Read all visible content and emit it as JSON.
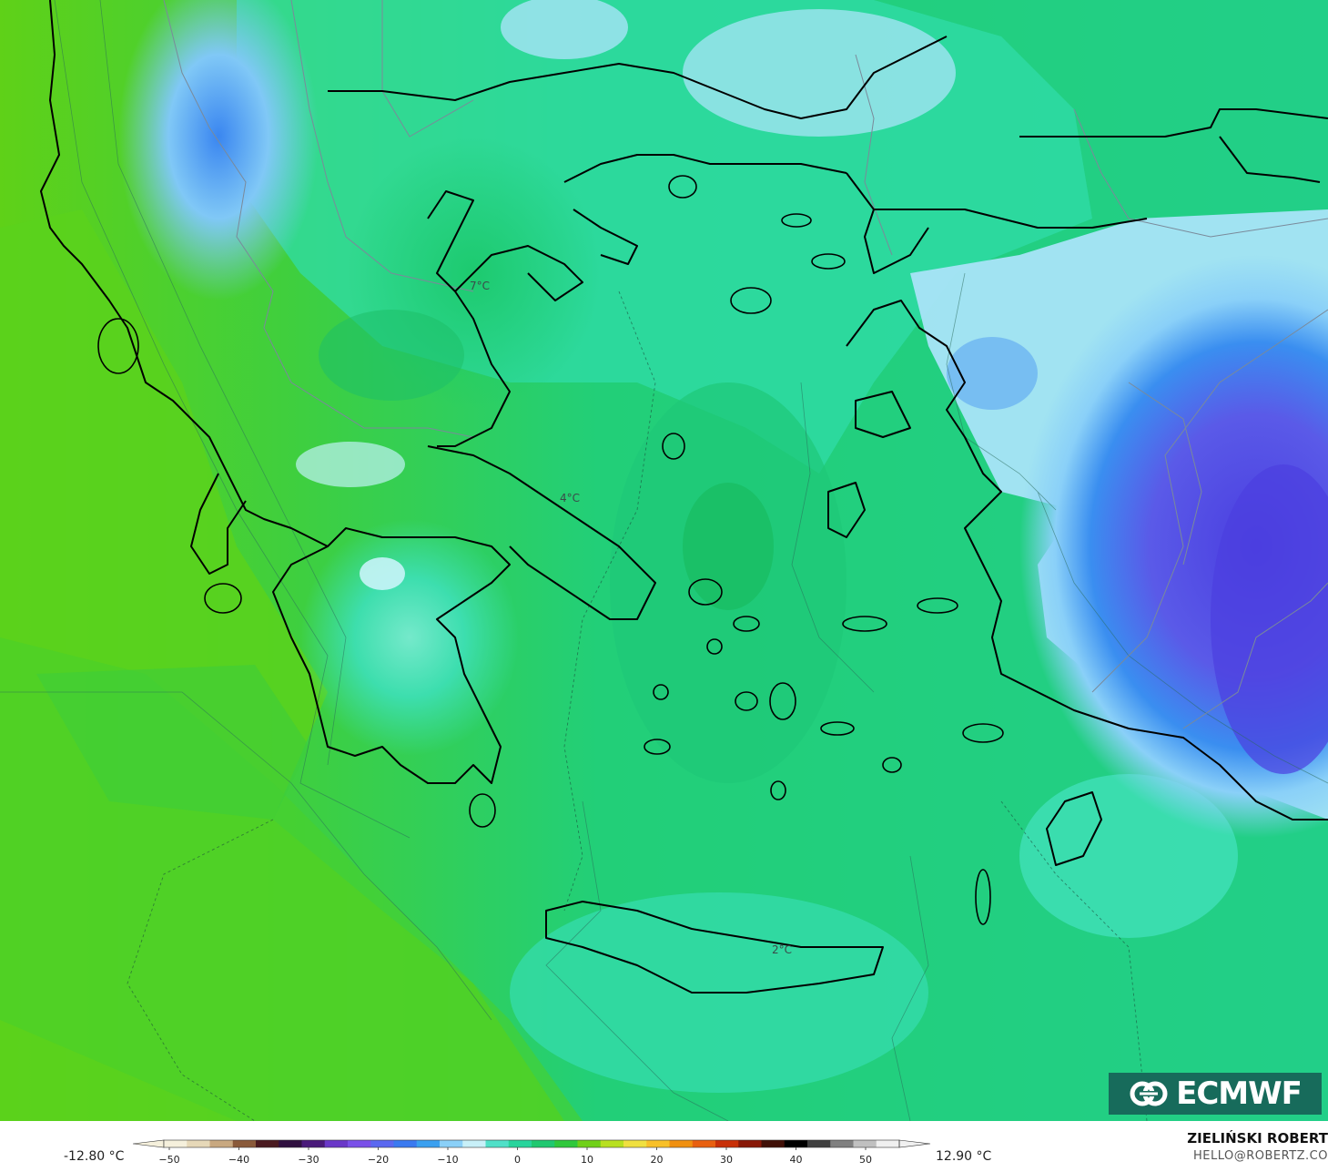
{
  "map": {
    "region": "Greece and the Aegean",
    "field": "temperature",
    "labels": [
      {
        "id": "north",
        "text": "7°C"
      },
      {
        "id": "central",
        "text": "4°C"
      },
      {
        "id": "crete",
        "text": "2°C"
      }
    ],
    "colors": {
      "sea_west": "#5fd118",
      "sea_mid": "#3ccf4f",
      "land_green": "#1fcf7c",
      "land_teal": "#33e0b4",
      "cold_light": "#a9e4f8",
      "cold_blue": "#4aa8f0",
      "cold_violet": "#5a55e0",
      "coast": "#000000",
      "borders": "#7a8a9a"
    }
  },
  "logo": {
    "text": "ECMWF",
    "icon": "ecmwf-logo-icon"
  },
  "colorbar": {
    "min_label": "-12.80 °C",
    "max_label": "12.90 °C",
    "ticks": [
      "−50",
      "−40",
      "−30",
      "−20",
      "−10",
      "0",
      "10",
      "20",
      "30",
      "40",
      "50"
    ],
    "stops": [
      "#f5f0dc",
      "#e6d8b8",
      "#c8a880",
      "#8a5a3a",
      "#4a1a20",
      "#301040",
      "#4a1a7a",
      "#6a38c8",
      "#7a50e8",
      "#5a68f0",
      "#3a7af0",
      "#3aa0f0",
      "#8ad0f8",
      "#c8f0f8",
      "#50e0c8",
      "#28d49c",
      "#20c870",
      "#30c83c",
      "#70d018",
      "#b8e020",
      "#f0e040",
      "#f8c028",
      "#f09010",
      "#e86010",
      "#c83008",
      "#881808",
      "#401008",
      "#000000",
      "#404040",
      "#808080",
      "#c0c0c0",
      "#f0f0f0"
    ]
  },
  "credit": {
    "name": "ZIELIŃSKI ROBERT",
    "email": "HELLO@ROBERTZ.CO"
  }
}
